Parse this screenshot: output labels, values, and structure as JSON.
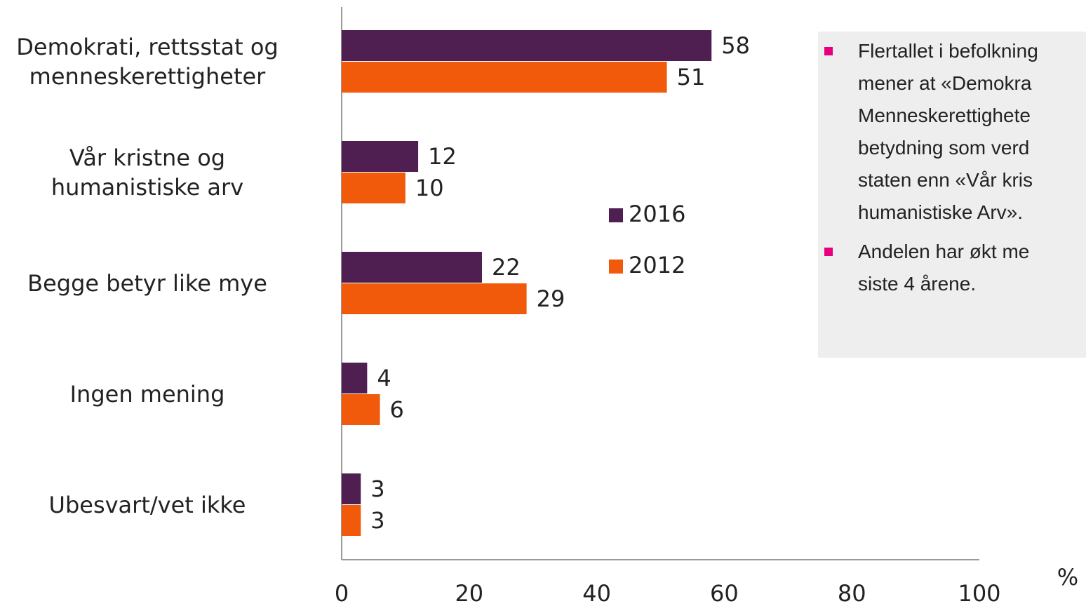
{
  "chart_data": {
    "type": "barh",
    "categories": [
      "Demokrati, rettsstat og\nmenneskerettigheter",
      "Vår kristne og\nhumanistiske arv",
      "Begge betyr like mye",
      "Ingen mening",
      "Ubesvart/vet ikke"
    ],
    "series": [
      {
        "name": "2016",
        "color": "#4f1f52",
        "values": [
          58,
          12,
          22,
          4,
          3
        ]
      },
      {
        "name": "2012",
        "color": "#f05a0a",
        "values": [
          51,
          10,
          29,
          6,
          3
        ]
      }
    ],
    "xlim": [
      0,
      100
    ],
    "xticks": [
      0,
      20,
      40,
      60,
      80,
      100
    ],
    "x_label": "%"
  },
  "textbox": {
    "bullets": [
      {
        "lines": [
          "Flertallet i befolkning",
          "mener at «Demokra",
          "Menneskerettighete",
          "betydning som verd",
          "staten enn «Vår kris",
          "humanistiske Arv»."
        ]
      },
      {
        "lines": [
          "Andelen har økt me",
          "siste 4 årene."
        ]
      }
    ],
    "bullet_color": "#e6007e"
  }
}
